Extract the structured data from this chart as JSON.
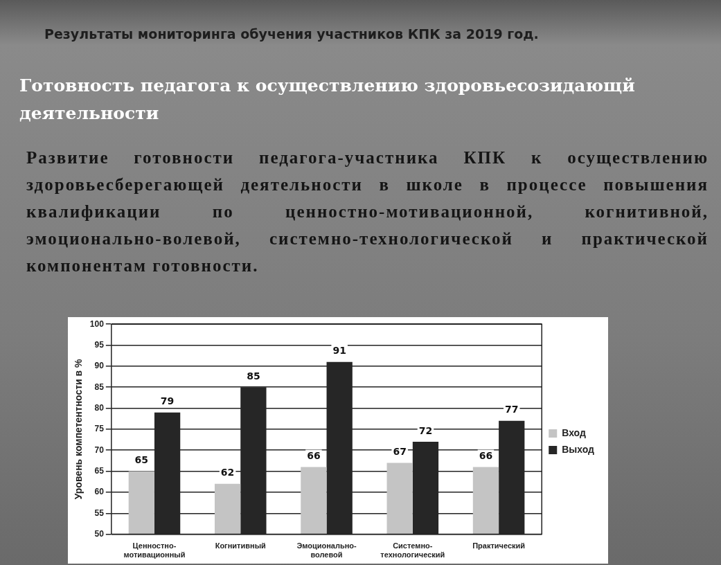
{
  "chart_data": {
    "type": "bar",
    "title": "Результаты мониторинга обучения участников КПК за 2019 год.",
    "subtitle": "Готовность педагога к осуществлению здоровьесозидающй деятельности",
    "annotations": [
      "Развитие готовности педагога-участника КПК к осуществлению здоровьесберегающей деятельности в школе в процессе повышения квалификации по ценностно-мотивационной, когнитивной, эмоционально-волевой, системно-технологической и практической компонентам готовности."
    ],
    "ylabel": "Уровень компетентности в %",
    "categories": [
      "Ценностно-мотивационный",
      "Когнитивный",
      "Эмоционально-волевой",
      "Системно-технологический",
      "Практический"
    ],
    "series": [
      {
        "name": "Вход",
        "color": "#c4c4c4",
        "values": [
          65,
          62,
          66,
          67,
          66
        ]
      },
      {
        "name": "Выход",
        "color": "#262626",
        "values": [
          79,
          85,
          91,
          72,
          77
        ]
      }
    ],
    "ylim": [
      50,
      100
    ],
    "yticks": [
      50,
      55,
      60,
      65,
      70,
      75,
      80,
      85,
      90,
      95,
      100
    ],
    "grid": "y",
    "legend": "right",
    "data_labels": true
  }
}
